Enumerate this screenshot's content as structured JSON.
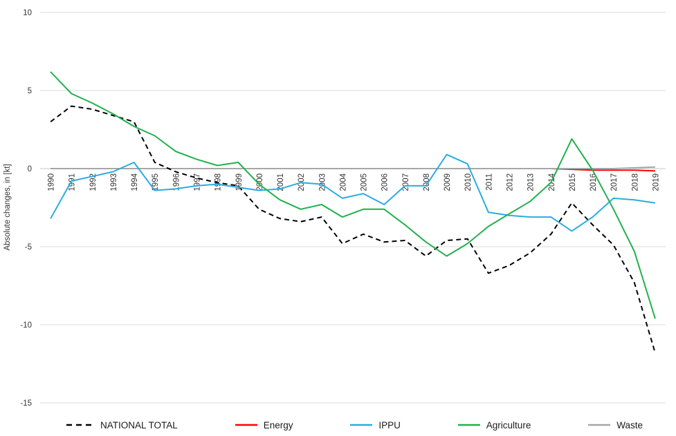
{
  "y_axis": {
    "title": "Absolute changes, in [kt]",
    "ticks": [
      10,
      5,
      0,
      -5,
      -10,
      -15
    ]
  },
  "colors": {
    "grid": "#d9d9d9",
    "zero_axis": "#c6c6c6",
    "tick_text": "#333333",
    "national_total": "#000000",
    "energy": "#ff0000",
    "ippu": "#29abe2",
    "agriculture": "#1fb14c",
    "waste": "#a6a6a6"
  },
  "legend": {
    "items": [
      {
        "label": "NATIONAL TOTAL",
        "color": "#000000",
        "dashed": true
      },
      {
        "label": "Energy",
        "color": "#ff0000",
        "dashed": false
      },
      {
        "label": "IPPU",
        "color": "#29abe2",
        "dashed": false
      },
      {
        "label": "Agriculture",
        "color": "#1fb14c",
        "dashed": false
      },
      {
        "label": "Waste",
        "color": "#a6a6a6",
        "dashed": false
      }
    ]
  },
  "chart_data": {
    "type": "line",
    "title": "",
    "xlabel": "",
    "ylabel": "Absolute changes, in [kt]",
    "ylim": [
      -15,
      10
    ],
    "y_ticks": [
      10,
      5,
      0,
      -5,
      -10,
      -15
    ],
    "grid": true,
    "legend_position": "bottom",
    "x": [
      "1990",
      "1991",
      "1992",
      "1993",
      "1994",
      "1995",
      "1996",
      "1997",
      "1998",
      "1999",
      "2000",
      "2001",
      "2002",
      "2003",
      "2004",
      "2005",
      "2006",
      "2007",
      "2008",
      "2009",
      "2010",
      "2011",
      "2012",
      "2013",
      "2014",
      "2015",
      "2016",
      "2017",
      "2018",
      "2019"
    ],
    "series": [
      {
        "name": "NATIONAL TOTAL",
        "color": "#000000",
        "dashed": true,
        "values": [
          3.0,
          4.0,
          3.8,
          3.4,
          3.0,
          0.4,
          -0.2,
          -0.6,
          -0.9,
          -1.1,
          -2.6,
          -3.2,
          -3.4,
          -3.1,
          -4.8,
          -4.2,
          -4.7,
          -4.6,
          -5.6,
          -4.6,
          -4.5,
          -6.7,
          -6.2,
          -5.4,
          -4.2,
          -2.2,
          -3.6,
          -4.9,
          -7.3,
          -11.8
        ]
      },
      {
        "name": "Energy",
        "color": "#ff0000",
        "dashed": false,
        "values": [
          0.0,
          0.0,
          0.0,
          0.0,
          0.0,
          0.0,
          0.0,
          0.0,
          0.0,
          0.0,
          0.0,
          0.0,
          0.0,
          0.0,
          0.0,
          0.0,
          0.0,
          0.0,
          0.0,
          0.0,
          0.0,
          0.0,
          0.0,
          0.0,
          0.0,
          -0.05,
          -0.1,
          -0.1,
          -0.1,
          -0.15
        ]
      },
      {
        "name": "IPPU",
        "color": "#29abe2",
        "dashed": false,
        "values": [
          -3.2,
          -0.8,
          -0.5,
          -0.2,
          0.4,
          -1.4,
          -1.3,
          -1.1,
          -1.0,
          -1.2,
          -1.4,
          -1.3,
          -0.9,
          -1.0,
          -1.9,
          -1.6,
          -2.3,
          -1.1,
          -1.1,
          0.9,
          0.3,
          -2.8,
          -3.0,
          -3.1,
          -3.1,
          -4.0,
          -3.1,
          -1.9,
          -2.0,
          -2.2
        ]
      },
      {
        "name": "Agriculture",
        "color": "#1fb14c",
        "dashed": false,
        "values": [
          6.2,
          4.8,
          4.2,
          3.5,
          2.7,
          2.1,
          1.1,
          0.6,
          0.2,
          0.4,
          -1.0,
          -2.0,
          -2.6,
          -2.3,
          -3.1,
          -2.6,
          -2.6,
          -3.6,
          -4.7,
          -5.6,
          -4.8,
          -3.7,
          -2.9,
          -2.1,
          -0.9,
          1.9,
          -0.1,
          -2.6,
          -5.3,
          -9.6
        ]
      },
      {
        "name": "Waste",
        "color": "#a6a6a6",
        "dashed": false,
        "values": [
          0.0,
          0.0,
          0.0,
          0.0,
          0.0,
          0.0,
          0.0,
          0.0,
          0.0,
          0.0,
          0.0,
          0.0,
          0.0,
          0.0,
          0.0,
          0.0,
          0.0,
          0.0,
          0.0,
          0.0,
          0.0,
          0.0,
          0.0,
          0.0,
          0.0,
          0.0,
          0.0,
          0.0,
          0.05,
          0.1
        ]
      }
    ]
  }
}
